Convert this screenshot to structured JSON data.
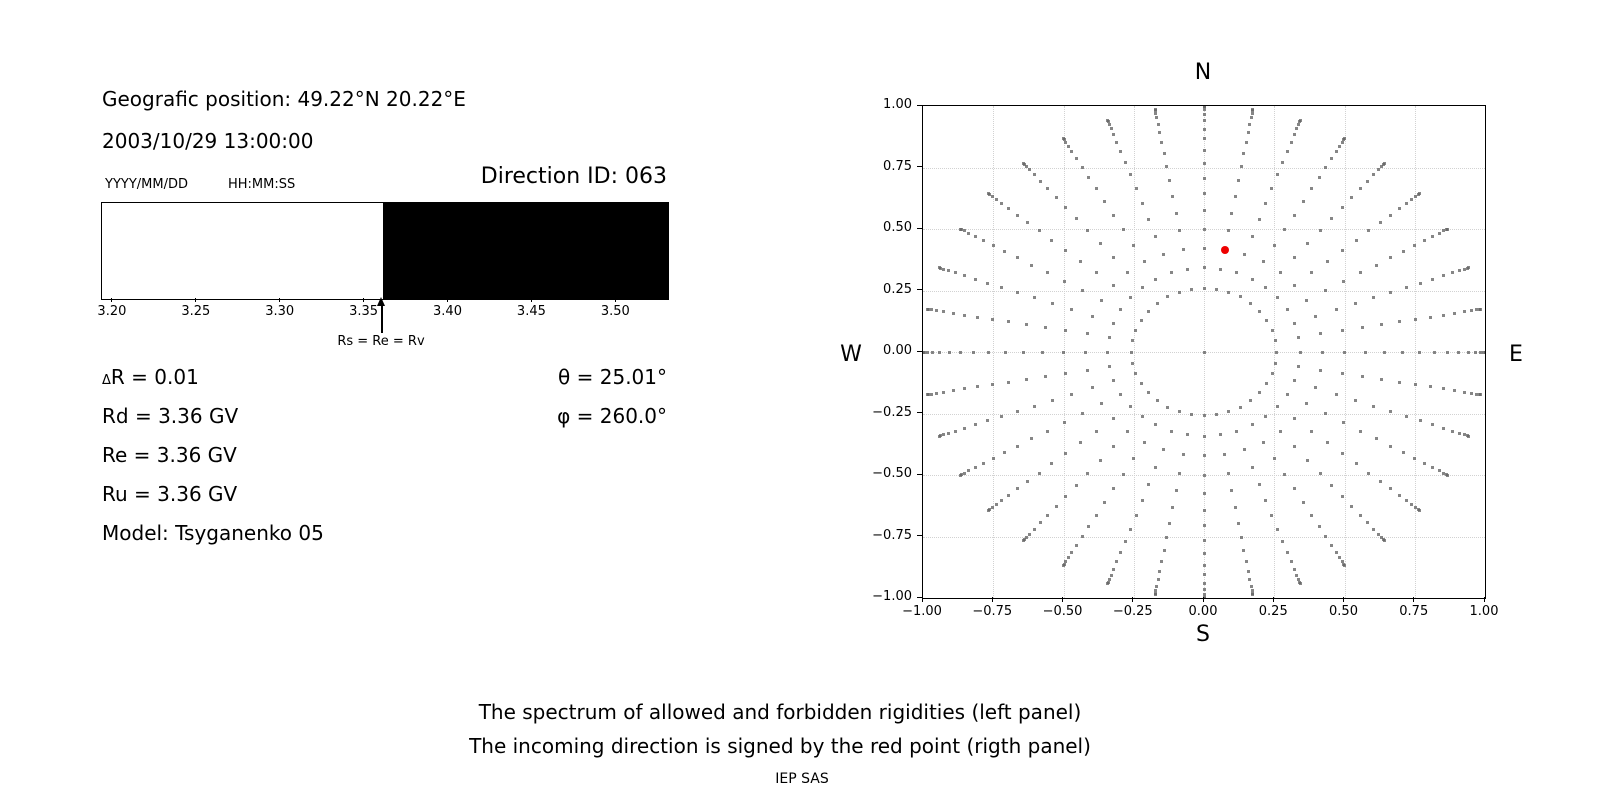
{
  "info_panel": {
    "position_line": "Geografic position: 49.22°N 20.22°E",
    "datetime_line": "2003/10/29 13:00:00",
    "date_format_label": "YYYY/MM/DD",
    "time_format_label": "HH:MM:SS",
    "direction_id_line": "Direction ID: 063",
    "delta_symbol": "Δ",
    "delta_rest": "R = 0.01",
    "rd_line": "Rd = 3.36 GV",
    "re_line": "Re = 3.36 GV",
    "ru_line": "Ru = 3.36 GV",
    "model_line": "Model: Tsyganenko 05",
    "theta_line": "θ = 25.01°",
    "phi_line": "φ = 260.0°"
  },
  "captions": {
    "line1": "The spectrum of allowed and forbidden rigidities (left panel)",
    "line2": "The incoming direction is signed by the red point (rigth panel)",
    "credit": "IEP SAS"
  },
  "chart_data": [
    {
      "type": "bar",
      "title": "Rigidity spectrum strip: allowed (white) vs forbidden (black)",
      "xlim": [
        3.1935,
        3.5308
      ],
      "xtick_values": [
        3.2,
        3.25,
        3.3,
        3.35,
        3.4,
        3.45,
        3.5
      ],
      "xtick_labels": [
        "3.20",
        "3.25",
        "3.30",
        "3.35",
        "3.40",
        "3.45",
        "3.50"
      ],
      "segments": [
        {
          "from": 3.1935,
          "to": 3.3607,
          "color": "#ffffff",
          "meaning": "allowed rigidities"
        },
        {
          "from": 3.3607,
          "to": 3.5308,
          "color": "#000000",
          "meaning": "forbidden rigidities"
        }
      ],
      "annotation": {
        "text": "Rs = Re = Rv",
        "x": 3.3607
      }
    },
    {
      "type": "scatter",
      "title": "Incoming direction map (red point = incoming direction)",
      "xlim": [
        -1.0,
        1.0
      ],
      "ylim": [
        -1.0,
        1.0
      ],
      "grid": true,
      "xtick_values": [
        -1.0,
        -0.75,
        -0.5,
        -0.25,
        0.0,
        0.25,
        0.5,
        0.75,
        1.0
      ],
      "xtick_labels": [
        "−1.00",
        "−0.75",
        "−0.50",
        "−0.25",
        "0.00",
        "0.25",
        "0.50",
        "0.75",
        "1.00"
      ],
      "ytick_values": [
        1.0,
        0.75,
        0.5,
        0.25,
        0.0,
        -0.25,
        -0.5,
        -0.75,
        -1.0
      ],
      "ytick_labels": [
        "1.00",
        "0.75",
        "0.50",
        "0.25",
        "0.00",
        "−0.25",
        "−0.50",
        "−0.75",
        "−1.00"
      ],
      "compass": {
        "top": "N",
        "bottom": "S",
        "left": "W",
        "right": "E"
      },
      "direction_grid": {
        "description": "gray dots: 36 radial spokes of direction grid, azimuth every 10° from North; dot radius r = sin(zenith) for zenith 15°–90° in 5° steps; plus one dot at center",
        "azimuth_start_deg": 0,
        "azimuth_step_deg": 10,
        "azimuth_count": 36,
        "zenith_min_deg": 15,
        "zenith_max_deg": 90,
        "zenith_step_deg": 5,
        "radius_mapping": "sin(zenith)",
        "includes_center_point": true,
        "marker": "square",
        "marker_size_px": 3,
        "color": "#646464"
      },
      "red_point": {
        "x": 0.0734,
        "y": 0.4163,
        "zenith_deg": 25.01,
        "azimuth_deg": 260.0,
        "color": "#ee0000"
      }
    }
  ]
}
